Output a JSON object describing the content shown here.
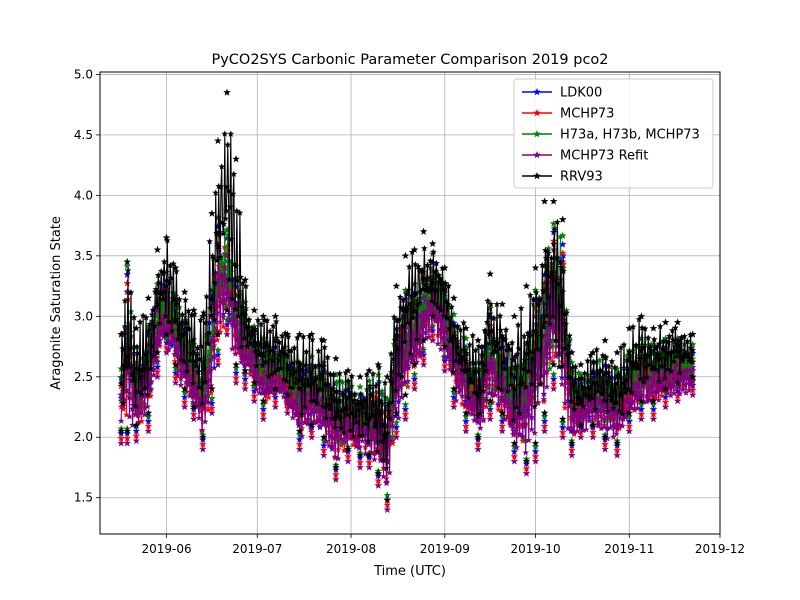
{
  "chart_data": {
    "type": "line",
    "title": "PyCO2SYS Carbonic Parameter Comparison 2019 pco2",
    "xlabel": "Time (UTC)",
    "ylabel": "Aragonite Saturation State",
    "xlim": [
      "2019-05-10",
      "2019-12-01"
    ],
    "ylim": [
      1.2,
      5.02
    ],
    "grid": true,
    "legend_position": "top-right",
    "x_ticks": [
      "2019-06",
      "2019-07",
      "2019-08",
      "2019-09",
      "2019-10",
      "2019-11",
      "2019-12"
    ],
    "y_ticks": [
      "1.5",
      "2.0",
      "2.5",
      "3.0",
      "3.5",
      "4.0",
      "4.5",
      "5.0"
    ],
    "marker": "star",
    "baseline_series": "MCHP73 Refit",
    "x": [
      "2019-05-17",
      "2019-05-19",
      "2019-05-22",
      "2019-05-26",
      "2019-05-29",
      "2019-06-01",
      "2019-06-04",
      "2019-06-07",
      "2019-06-10",
      "2019-06-13",
      "2019-06-16",
      "2019-06-18",
      "2019-06-21",
      "2019-06-24",
      "2019-06-27",
      "2019-06-30",
      "2019-07-03",
      "2019-07-07",
      "2019-07-11",
      "2019-07-15",
      "2019-07-19",
      "2019-07-23",
      "2019-07-27",
      "2019-07-31",
      "2019-08-04",
      "2019-08-07",
      "2019-08-10",
      "2019-08-13",
      "2019-08-16",
      "2019-08-19",
      "2019-08-22",
      "2019-08-25",
      "2019-08-28",
      "2019-09-01",
      "2019-09-04",
      "2019-09-08",
      "2019-09-12",
      "2019-09-16",
      "2019-09-20",
      "2019-09-24",
      "2019-09-28",
      "2019-10-01",
      "2019-10-04",
      "2019-10-07",
      "2019-10-10",
      "2019-10-13",
      "2019-10-16",
      "2019-10-20",
      "2019-10-24",
      "2019-10-28",
      "2019-11-01",
      "2019-11-05",
      "2019-11-09",
      "2019-11-13",
      "2019-11-17",
      "2019-11-22"
    ],
    "series": [
      {
        "name": "MCHP73 Refit",
        "color": "#800080",
        "low": [
          1.95,
          1.95,
          1.97,
          2.05,
          2.5,
          2.7,
          2.45,
          2.25,
          2.15,
          1.9,
          2.2,
          2.6,
          2.85,
          2.45,
          2.4,
          2.3,
          2.15,
          2.25,
          2.2,
          1.9,
          2.0,
          1.85,
          1.65,
          1.8,
          1.75,
          1.75,
          1.6,
          1.4,
          2.0,
          2.15,
          2.4,
          2.6,
          2.8,
          2.55,
          2.25,
          2.05,
          1.9,
          2.15,
          2.05,
          1.8,
          1.7,
          1.8,
          2.05,
          2.4,
          2.0,
          1.85,
          2.0,
          2.0,
          1.9,
          1.85,
          2.05,
          2.15,
          2.15,
          2.25,
          2.3,
          2.35
        ],
        "high": [
          2.35,
          3.2,
          2.4,
          2.7,
          3.05,
          3.15,
          2.95,
          2.75,
          2.55,
          2.4,
          3.0,
          3.6,
          3.5,
          3.1,
          2.9,
          2.7,
          2.6,
          2.6,
          2.45,
          2.4,
          2.45,
          2.4,
          2.3,
          2.25,
          2.2,
          2.25,
          2.3,
          2.1,
          2.75,
          3.0,
          3.05,
          3.15,
          3.3,
          3.05,
          2.8,
          2.6,
          2.4,
          2.85,
          2.6,
          2.35,
          2.55,
          3.0,
          3.2,
          3.55,
          3.45,
          2.4,
          2.3,
          2.4,
          2.45,
          2.35,
          2.5,
          2.6,
          2.55,
          2.6,
          2.6,
          2.55
        ]
      },
      {
        "name": "RRV93",
        "color": "#000000",
        "low": [
          2.05,
          2.05,
          2.1,
          2.2,
          2.7,
          2.85,
          2.6,
          2.4,
          2.25,
          2.0,
          2.4,
          2.85,
          3.05,
          2.6,
          2.55,
          2.45,
          2.3,
          2.4,
          2.35,
          2.05,
          2.1,
          2.0,
          1.75,
          1.9,
          1.85,
          1.85,
          1.7,
          1.48,
          2.2,
          2.35,
          2.6,
          2.8,
          3.0,
          2.75,
          2.4,
          2.2,
          2.0,
          2.3,
          2.2,
          1.95,
          1.8,
          1.95,
          2.2,
          2.6,
          2.15,
          1.95,
          2.1,
          2.1,
          2.0,
          1.95,
          2.2,
          2.3,
          2.3,
          2.4,
          2.45,
          2.5
        ],
        "high": [
          2.85,
          3.45,
          2.9,
          3.15,
          3.55,
          3.65,
          3.4,
          3.2,
          3.05,
          3.0,
          3.85,
          4.45,
          4.85,
          4.3,
          3.3,
          3.05,
          3.0,
          3.0,
          2.85,
          2.85,
          2.85,
          2.8,
          2.65,
          2.55,
          2.5,
          2.55,
          2.6,
          2.5,
          3.25,
          3.5,
          3.55,
          3.7,
          3.6,
          3.4,
          3.15,
          2.9,
          2.8,
          3.35,
          3.1,
          3.0,
          3.25,
          3.4,
          3.95,
          3.95,
          3.8,
          2.7,
          2.6,
          2.7,
          2.8,
          2.7,
          2.9,
          3.0,
          2.9,
          2.95,
          2.95,
          2.85
        ]
      },
      {
        "name": "LDK00",
        "color": "#0000ff",
        "offset": 0.08
      },
      {
        "name": "MCHP73",
        "color": "#ff0000",
        "offset": 0.04
      },
      {
        "name": "H73a, H73b, MCHP73",
        "color": "#008000",
        "offset": 0.12
      }
    ],
    "legend": [
      {
        "name": "LDK00",
        "color": "#0000ff"
      },
      {
        "name": "MCHP73",
        "color": "#ff0000"
      },
      {
        "name": "H73a, H73b, MCHP73",
        "color": "#008000"
      },
      {
        "name": "MCHP73 Refit",
        "color": "#800080"
      },
      {
        "name": "RRV93",
        "color": "#000000"
      }
    ]
  }
}
